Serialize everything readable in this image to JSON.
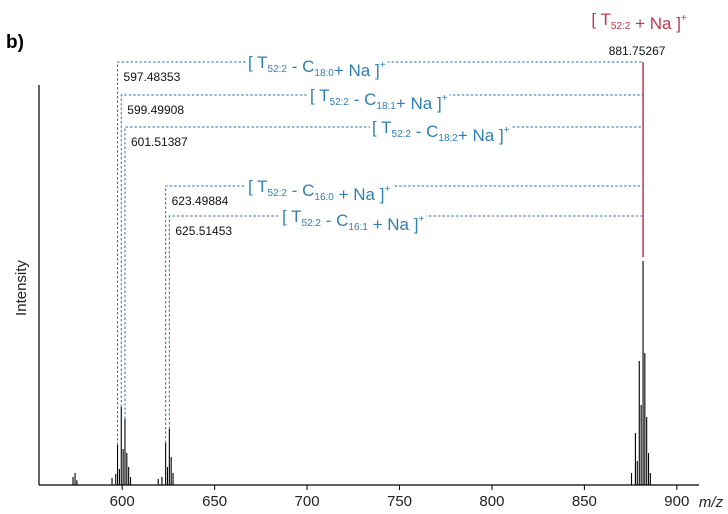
{
  "panel_label": "b)",
  "chart_data": {
    "type": "mass-spectrum",
    "xlabel": "m/z",
    "ylabel": "Intensity",
    "xlim": [
      555,
      912
    ],
    "ylim": [
      0,
      1.0
    ],
    "xticks": [
      600,
      650,
      700,
      750,
      800,
      850,
      900
    ],
    "colors": {
      "precursor": "#c0394b",
      "fragment": "#2f7fb5",
      "spectrum": "#000000",
      "guide": "#2f6fb5"
    },
    "peaks": [
      {
        "x": 573.4,
        "y": 0.02
      },
      {
        "x": 574.5,
        "y": 0.03
      },
      {
        "x": 575.5,
        "y": 0.012
      },
      {
        "x": 594.5,
        "y": 0.018
      },
      {
        "x": 596.5,
        "y": 0.028
      },
      {
        "x": 597.48,
        "y": 0.1
      },
      {
        "x": 598.5,
        "y": 0.04
      },
      {
        "x": 599.5,
        "y": 0.195
      },
      {
        "x": 600.5,
        "y": 0.09
      },
      {
        "x": 601.51,
        "y": 0.165
      },
      {
        "x": 602.5,
        "y": 0.08
      },
      {
        "x": 603.5,
        "y": 0.045
      },
      {
        "x": 604.5,
        "y": 0.02
      },
      {
        "x": 619.5,
        "y": 0.015
      },
      {
        "x": 621.5,
        "y": 0.02
      },
      {
        "x": 623.5,
        "y": 0.105
      },
      {
        "x": 624.5,
        "y": 0.045
      },
      {
        "x": 625.51,
        "y": 0.14
      },
      {
        "x": 626.5,
        "y": 0.07
      },
      {
        "x": 627.5,
        "y": 0.03
      },
      {
        "x": 875.5,
        "y": 0.03
      },
      {
        "x": 877.6,
        "y": 0.13
      },
      {
        "x": 878.6,
        "y": 0.06
      },
      {
        "x": 879.7,
        "y": 0.31
      },
      {
        "x": 880.7,
        "y": 0.2
      },
      {
        "x": 881.75,
        "y": 0.56
      },
      {
        "x": 882.7,
        "y": 0.33
      },
      {
        "x": 883.7,
        "y": 0.17
      },
      {
        "x": 884.7,
        "y": 0.08
      },
      {
        "x": 885.7,
        "y": 0.03
      }
    ],
    "precursor": {
      "mz_label": "881.75267",
      "mz": 881.75,
      "parts": [
        {
          "t": "[ T"
        },
        {
          "t": "52:2",
          "sub": true
        },
        {
          "t": " + Na ]"
        },
        {
          "t": "+",
          "sup": true
        }
      ]
    },
    "fragments": [
      {
        "mz_label": "597.48353",
        "mz": 597.48,
        "parts": [
          {
            "t": "[ T"
          },
          {
            "t": "52:2",
            "sub": true
          },
          {
            "t": " - C"
          },
          {
            "t": "18:0",
            "sub": true
          },
          {
            "t": "+ Na ]"
          },
          {
            "t": "+",
            "sup": true
          }
        ]
      },
      {
        "mz_label": "599.49908",
        "mz": 599.5,
        "parts": [
          {
            "t": "[ T"
          },
          {
            "t": "52:2",
            "sub": true
          },
          {
            "t": " - C"
          },
          {
            "t": "18:1",
            "sub": true
          },
          {
            "t": "+ Na ]"
          },
          {
            "t": "+",
            "sup": true
          }
        ]
      },
      {
        "mz_label": "601.51387",
        "mz": 601.51,
        "parts": [
          {
            "t": "[ T"
          },
          {
            "t": "52:2",
            "sub": true
          },
          {
            "t": " - C"
          },
          {
            "t": "18:2",
            "sub": true
          },
          {
            "t": "+ Na ]"
          },
          {
            "t": "+",
            "sup": true
          }
        ]
      },
      {
        "mz_label": "623.49884",
        "mz": 623.5,
        "parts": [
          {
            "t": "[ T"
          },
          {
            "t": "52:2",
            "sub": true
          },
          {
            "t": " - C"
          },
          {
            "t": "16:0",
            "sub": true
          },
          {
            "t": " + Na ]"
          },
          {
            "t": "+",
            "sup": true
          }
        ]
      },
      {
        "mz_label": "625.51453",
        "mz": 625.51,
        "parts": [
          {
            "t": "[ T"
          },
          {
            "t": "52:2",
            "sub": true
          },
          {
            "t": " - C"
          },
          {
            "t": "16:1",
            "sub": true
          },
          {
            "t": " + Na ]"
          },
          {
            "t": "+",
            "sup": true
          }
        ]
      }
    ]
  }
}
